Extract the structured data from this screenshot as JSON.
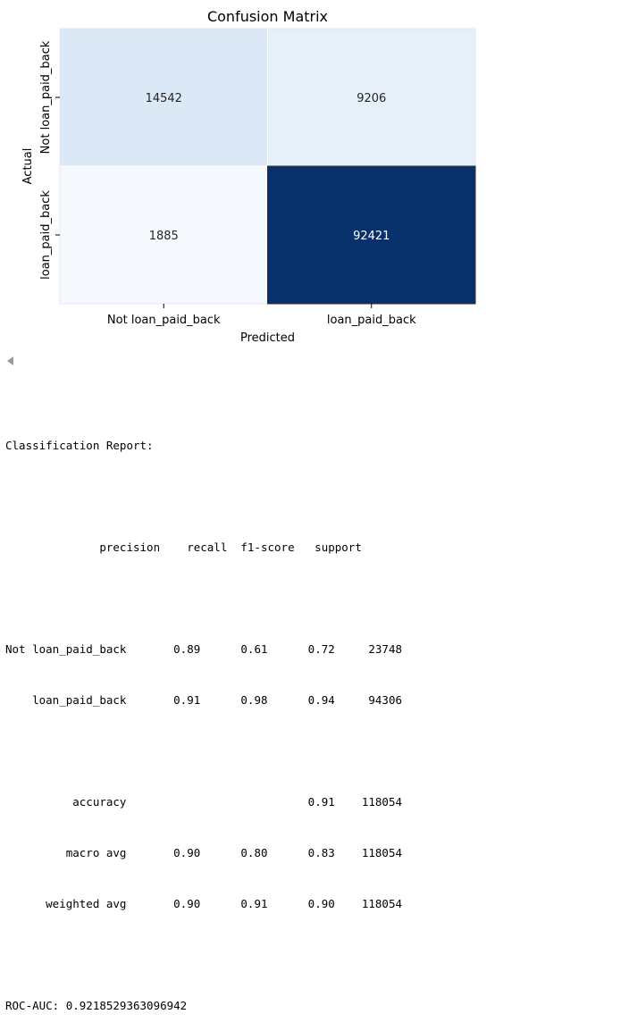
{
  "chart_data": {
    "type": "heatmap",
    "title": "Confusion Matrix",
    "xlabel": "Predicted",
    "ylabel": "Actual",
    "x_categories": [
      "Not loan_paid_back",
      "loan_paid_back"
    ],
    "y_categories": [
      "Not loan_paid_back",
      "loan_paid_back"
    ],
    "values": [
      [
        14542,
        9206
      ],
      [
        1885,
        92421
      ]
    ],
    "colormap": "Blues",
    "colorbar": false,
    "colors": {
      "cells": [
        [
          "#dbe9f6",
          "#e6f0f9"
        ],
        [
          "#f5f9fe",
          "#08306b"
        ]
      ],
      "text_on_light": "#262626",
      "text_on_dark": "#ffffff"
    }
  },
  "output": {
    "scroll_arrow_icon": "caret-left-icon",
    "report_heading": "Classification Report:",
    "table_header": "              precision    recall  f1-score   support",
    "rows": [
      "Not loan_paid_back       0.89      0.61      0.72     23748",
      "    loan_paid_back       0.91      0.98      0.94     94306"
    ],
    "summary_rows": [
      "          accuracy                           0.91    118054",
      "         macro avg       0.90      0.80      0.83    118054",
      "      weighted avg       0.90      0.91      0.90    118054"
    ],
    "roc_auc": "ROC-AUC: 0.9218529363096942"
  }
}
